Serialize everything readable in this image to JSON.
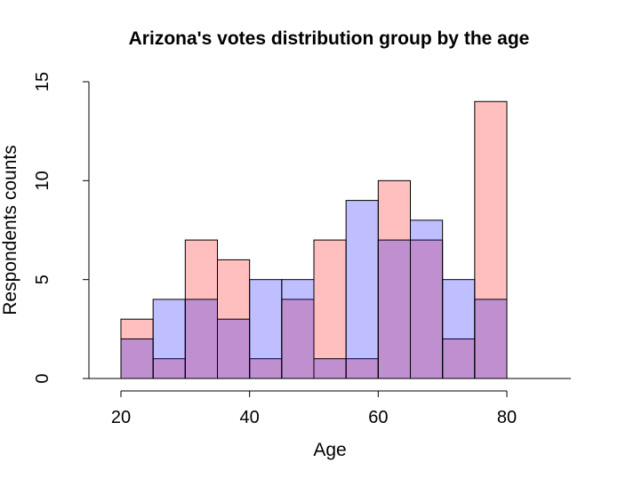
{
  "chart_data": {
    "type": "bar",
    "title": "Arizona's votes distribution group by the age",
    "xlabel": "Age",
    "ylabel": "Respondents counts",
    "xlim": [
      15,
      90
    ],
    "ylim": [
      0,
      15
    ],
    "x_ticks": [
      "20",
      "40",
      "60",
      "80"
    ],
    "y_ticks": [
      "0",
      "5",
      "10",
      "15"
    ],
    "bin_edges": [
      20,
      25,
      30,
      35,
      40,
      45,
      50,
      55,
      60,
      65,
      70,
      75,
      80
    ],
    "series": [
      {
        "color": "#ff000040",
        "values": [
          3,
          1,
          7,
          6,
          1,
          4,
          7,
          1,
          10,
          7,
          2,
          14
        ]
      },
      {
        "color": "#0000ff40",
        "values": [
          2,
          4,
          4,
          3,
          5,
          5,
          1,
          9,
          7,
          8,
          5,
          4
        ]
      }
    ],
    "grid": false,
    "legend": "none"
  }
}
